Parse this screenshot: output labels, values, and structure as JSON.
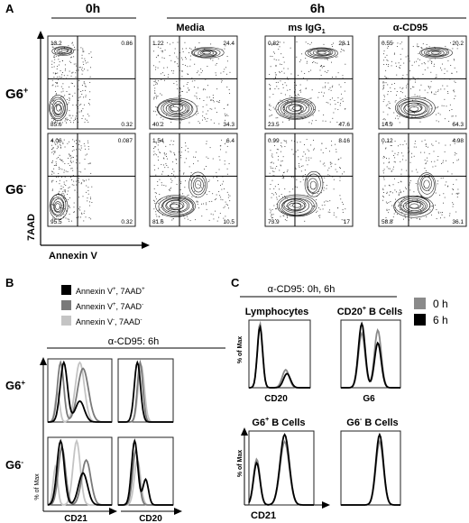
{
  "panel_a": {
    "letter": "A",
    "time_headers": [
      "0h",
      "6h"
    ],
    "columns": [
      "",
      "Media",
      "ms IgG",
      "α-CD95"
    ],
    "igg_subscript": "1",
    "rows": [
      "G6",
      "G6"
    ],
    "row_superscripts": [
      "+",
      "-"
    ],
    "y_axis_label": "7AAD",
    "x_axis_label": "Annexin V",
    "quadrants": [
      [
        [
          "13.2",
          "0.86",
          "85.6",
          "0.32"
        ],
        [
          "1.22",
          "24.4",
          "40.2",
          "34.3"
        ],
        [
          "0.82",
          "28.1",
          "23.5",
          "47.6"
        ],
        [
          "0.55",
          "20.2",
          "14.9",
          "64.3"
        ]
      ],
      [
        [
          "4.06",
          "0.087",
          "95.5",
          "0.32"
        ],
        [
          "1.54",
          "6.4",
          "81.6",
          "10.5"
        ],
        [
          "0.99",
          "8.16",
          "73.9",
          "17"
        ],
        [
          "0.12",
          "4.98",
          "58.8",
          "36.1"
        ]
      ]
    ]
  },
  "panel_b": {
    "letter": "B",
    "legend": [
      {
        "label": "Annexin V",
        "sup1": "+",
        "mid": ", 7AAD",
        "sup2": "+",
        "color": "#000000"
      },
      {
        "label": "Annexin V",
        "sup1": "+",
        "mid": ", 7AAD",
        "sup2": "-",
        "color": "#7a7a7a"
      },
      {
        "label": "Annexin V",
        "sup1": "-",
        "mid": ", 7AAD",
        "sup2": "-",
        "color": "#c4c4c4"
      }
    ],
    "title": "α-CD95: 6h",
    "rows": [
      "G6",
      "G6"
    ],
    "row_superscripts": [
      "+",
      "-"
    ],
    "y_axis_label": "% of Max",
    "x_labels": [
      "CD21",
      "CD20"
    ]
  },
  "panel_c": {
    "letter": "C",
    "title": "α-CD95: 0h, 6h",
    "legend": [
      {
        "label": "0 h",
        "color": "#8a8a8a"
      },
      {
        "label": "6 h",
        "color": "#000000"
      }
    ],
    "subplots": [
      {
        "title": "Lymphocytes",
        "x_label": "CD20"
      },
      {
        "title": "CD20",
        "title_sup": "+",
        "title_rest": " B Cells",
        "x_label": "G6"
      },
      {
        "title": "G6",
        "title_sup": "+",
        "title_rest": " B Cells",
        "x_label": ""
      },
      {
        "title": "G6",
        "title_sup": "-",
        "title_rest": " B Cells",
        "x_label": ""
      }
    ],
    "y_axis_label": "% of Max",
    "shared_x_label": "CD21"
  }
}
